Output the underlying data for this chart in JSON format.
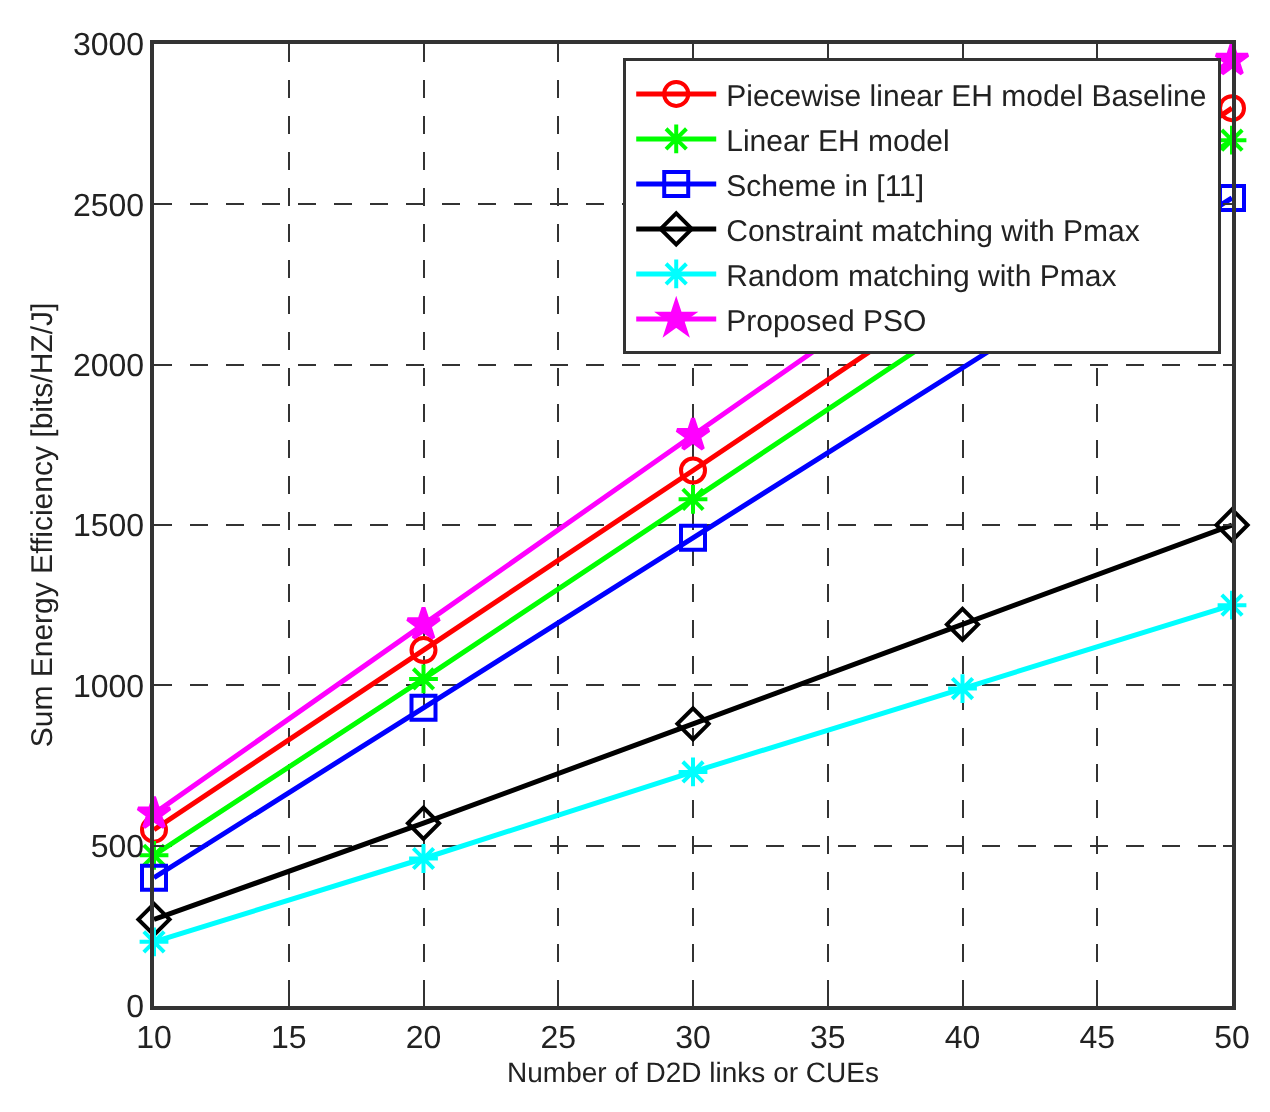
{
  "chart_data": {
    "type": "line",
    "xlabel": "Number of D2D links or CUEs",
    "ylabel": "Sum Energy Efficiency [bits/HZ/J]",
    "x": [
      10,
      20,
      30,
      40,
      50
    ],
    "series": [
      {
        "name": "Piecewise linear EH model Baseline",
        "color": "#ff0000",
        "marker": "circle",
        "values": [
          550,
          1110,
          1670,
          null,
          2800
        ]
      },
      {
        "name": "Linear EH model",
        "color": "#00ff00",
        "marker": "cross",
        "values": [
          470,
          1020,
          1580,
          null,
          2700
        ]
      },
      {
        "name": "Scheme in [11]",
        "color": "#0000ff",
        "marker": "square",
        "values": [
          400,
          930,
          1460,
          null,
          2520
        ]
      },
      {
        "name": "Constraint matching with Pmax",
        "color": "#000000",
        "marker": "diamond",
        "values": [
          270,
          570,
          880,
          1190,
          1500
        ]
      },
      {
        "name": "Random matching with Pmax",
        "color": "#00ffff",
        "marker": "cross",
        "values": [
          200,
          460,
          730,
          990,
          1250
        ]
      },
      {
        "name": "Proposed PSO",
        "color": "#ff00ff",
        "marker": "star",
        "values": [
          600,
          1190,
          1780,
          null,
          2950
        ]
      }
    ],
    "xlim": [
      10,
      50
    ],
    "xticks": [
      10,
      15,
      20,
      25,
      30,
      35,
      40,
      45,
      50
    ],
    "ylim": [
      0,
      3000
    ],
    "yticks": [
      0,
      500,
      1000,
      1500,
      2000,
      2500,
      3000
    ],
    "grid": true,
    "legend": "top right",
    "line_style": "solid"
  }
}
